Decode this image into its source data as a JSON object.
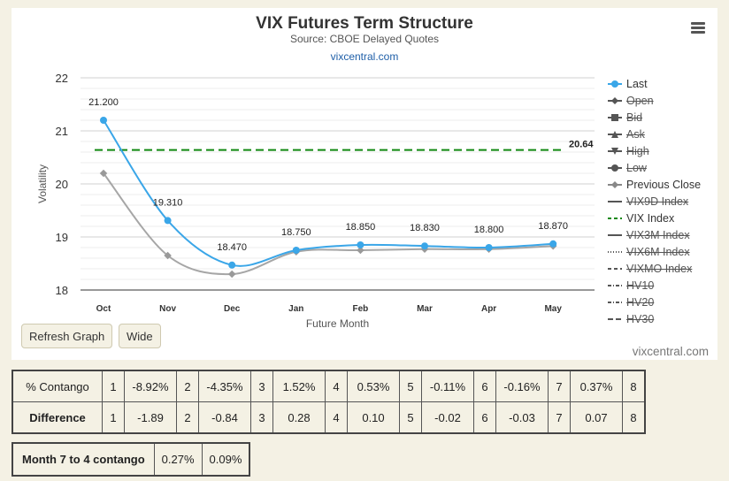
{
  "title": "VIX Futures Term Structure",
  "subtitle": "Source: CBOE Delayed Quotes",
  "link": "vixcentral.com",
  "credit": "vixcentral.com",
  "buttons": {
    "refresh": "Refresh Graph",
    "wide": "Wide"
  },
  "colors": {
    "last": "#3aa6e8",
    "prev": "#a6a6a6",
    "vix": "#118811",
    "bg": "#f4f1e4"
  },
  "chart_data": {
    "type": "line",
    "title": "VIX Futures Term Structure",
    "subtitle": "Source: CBOE Delayed Quotes",
    "xlabel": "Future Month",
    "ylabel": "Volatility",
    "ylim": [
      18,
      22
    ],
    "yticks": [
      18,
      19,
      20,
      21,
      22
    ],
    "categories": [
      "Oct",
      "Nov",
      "Dec",
      "Jan",
      "Feb",
      "Mar",
      "Apr",
      "May"
    ],
    "series": [
      {
        "name": "Last",
        "values": [
          21.2,
          19.31,
          18.47,
          18.75,
          18.85,
          18.83,
          18.8,
          18.87
        ],
        "labels": [
          "21.200",
          "19.310",
          "18.470",
          "18.750",
          "18.850",
          "18.830",
          "18.800",
          "18.870"
        ]
      },
      {
        "name": "Previous Close",
        "values": [
          20.2,
          18.65,
          18.3,
          18.72,
          18.75,
          18.77,
          18.77,
          18.83
        ]
      },
      {
        "name": "VIX Index",
        "value": 20.64,
        "label": "20.64"
      }
    ],
    "legend": [
      {
        "label": "Last",
        "marker": "circle",
        "style": "solid",
        "color": "#3aa6e8",
        "hidden": false
      },
      {
        "label": "Open",
        "marker": "diamond",
        "style": "solid",
        "color": "#555",
        "hidden": true
      },
      {
        "label": "Bid",
        "marker": "square",
        "style": "solid",
        "color": "#555",
        "hidden": true
      },
      {
        "label": "Ask",
        "marker": "triangle",
        "style": "solid",
        "color": "#555",
        "hidden": true
      },
      {
        "label": "High",
        "marker": "triangle-down",
        "style": "solid",
        "color": "#555",
        "hidden": true
      },
      {
        "label": "Low",
        "marker": "circle",
        "style": "solid",
        "color": "#555",
        "hidden": true
      },
      {
        "label": "Previous Close",
        "marker": "diamond",
        "style": "solid",
        "color": "#888",
        "hidden": false
      },
      {
        "label": "VIX9D Index",
        "marker": "none",
        "style": "solid",
        "color": "#555",
        "hidden": true
      },
      {
        "label": "VIX Index",
        "marker": "none",
        "style": "dash",
        "color": "#118811",
        "hidden": false
      },
      {
        "label": "VIX3M Index",
        "marker": "none",
        "style": "solid",
        "color": "#555",
        "hidden": true
      },
      {
        "label": "VIX6M Index",
        "marker": "none",
        "style": "dot",
        "color": "#555",
        "hidden": true
      },
      {
        "label": "VIXMO Index",
        "marker": "none",
        "style": "dash",
        "color": "#555",
        "hidden": true
      },
      {
        "label": "HV10",
        "marker": "none",
        "style": "dashdot",
        "color": "#555",
        "hidden": true
      },
      {
        "label": "HV20",
        "marker": "none",
        "style": "dashdot",
        "color": "#555",
        "hidden": true
      },
      {
        "label": "HV30",
        "marker": "none",
        "style": "longdash",
        "color": "#555",
        "hidden": true
      }
    ],
    "grid": true,
    "legend_position": "right"
  },
  "contango_table": {
    "rows": [
      {
        "header": "% Contango",
        "bold": false,
        "cells": [
          [
            "1",
            "-8.92%"
          ],
          [
            "2",
            "-4.35%"
          ],
          [
            "3",
            "1.52%"
          ],
          [
            "4",
            "0.53%"
          ],
          [
            "5",
            "-0.11%"
          ],
          [
            "6",
            "-0.16%"
          ],
          [
            "7",
            "0.37%"
          ],
          [
            "8",
            ""
          ]
        ]
      },
      {
        "header": "Difference",
        "bold": true,
        "cells": [
          [
            "1",
            "-1.89"
          ],
          [
            "2",
            "-0.84"
          ],
          [
            "3",
            "0.28"
          ],
          [
            "4",
            "0.10"
          ],
          [
            "5",
            "-0.02"
          ],
          [
            "6",
            "-0.03"
          ],
          [
            "7",
            "0.07"
          ],
          [
            "8",
            ""
          ]
        ]
      }
    ]
  },
  "month_table": {
    "label": "Month 7 to 4 contango",
    "v1": "0.27%",
    "v2": "0.09%"
  }
}
